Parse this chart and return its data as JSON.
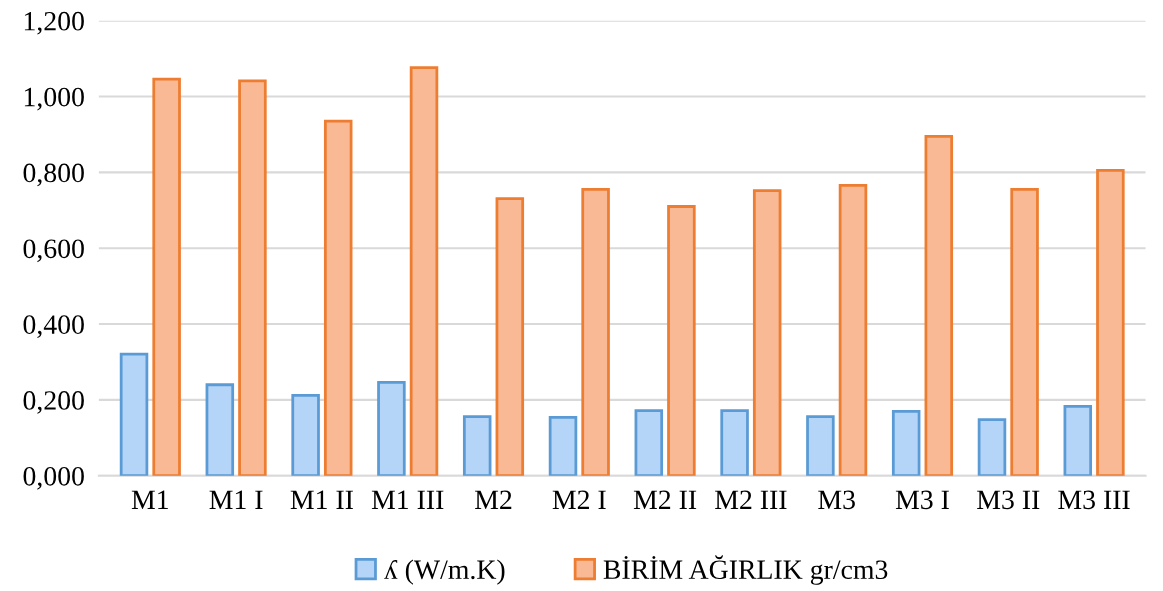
{
  "chart_data": {
    "type": "bar",
    "categories": [
      "M1",
      "M1 I",
      "M1 II",
      "M1 III",
      "M2",
      "M2 I",
      "M2 II",
      "M2 III",
      "M3",
      "M3 I",
      "M3 II",
      "M3 III"
    ],
    "series": [
      {
        "name": "ʎ (W/m.K)",
        "color": "#b4d5f7",
        "values": [
          0.321,
          0.24,
          0.212,
          0.246,
          0.156,
          0.154,
          0.172,
          0.172,
          0.156,
          0.17,
          0.148,
          0.183
        ]
      },
      {
        "name": "BİRİM AĞIRLIK gr/cm3",
        "color": "#f9b995",
        "values": [
          1.046,
          1.041,
          0.935,
          1.076,
          0.731,
          0.755,
          0.71,
          0.752,
          0.766,
          0.895,
          0.755,
          0.805
        ]
      }
    ],
    "ylim": [
      0,
      1.2
    ],
    "yticks": [
      {
        "value": 0,
        "label": "0,000"
      },
      {
        "value": 0.2,
        "label": "0,200"
      },
      {
        "value": 0.4,
        "label": "0,400"
      },
      {
        "value": 0.6,
        "label": "0,600"
      },
      {
        "value": 0.8,
        "label": "0,800"
      },
      {
        "value": 1.0,
        "label": "1,000"
      },
      {
        "value": 1.2,
        "label": "1,200"
      }
    ],
    "grid": "y",
    "legend": "bottom"
  }
}
